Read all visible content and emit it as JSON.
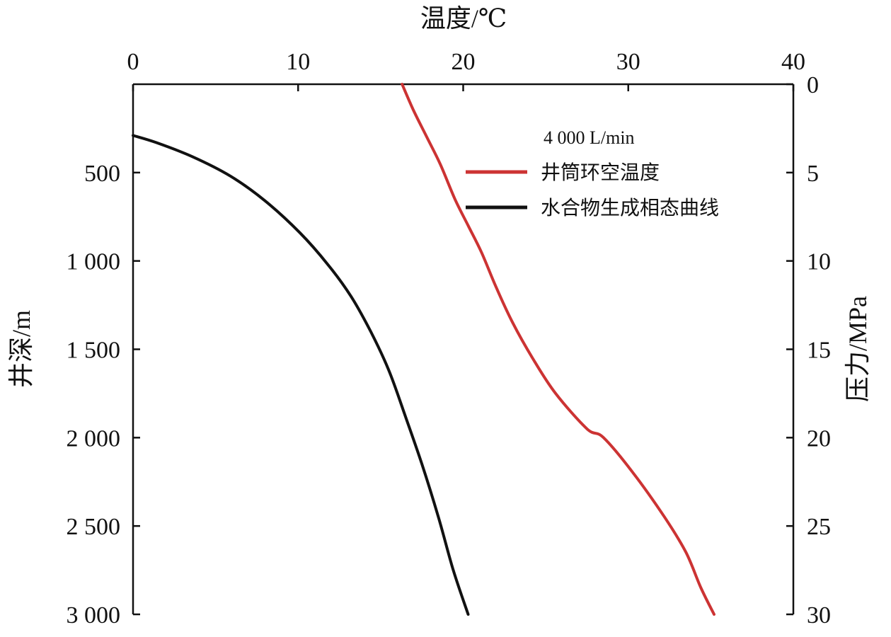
{
  "chart_data": {
    "type": "line",
    "title": "",
    "x_axis": {
      "label": "温度/℃",
      "position": "top",
      "range": [
        0,
        40
      ],
      "ticks": [
        0,
        10,
        20,
        30,
        40
      ],
      "tick_labels": [
        "0",
        "10",
        "20",
        "30",
        "40"
      ]
    },
    "y_axis_left": {
      "label": "井深/m",
      "range": [
        0,
        3000
      ],
      "inverted": true,
      "ticks": [
        500,
        1000,
        1500,
        2000,
        2500,
        3000
      ],
      "tick_labels": [
        "500",
        "1 000",
        "1 500",
        "2 000",
        "2 500",
        "3 000"
      ]
    },
    "y_axis_right": {
      "label": "压力/MPa",
      "range": [
        0,
        30
      ],
      "inverted": true,
      "ticks": [
        0,
        5,
        10,
        15,
        20,
        25,
        30
      ],
      "tick_labels": [
        "0",
        "5",
        "10",
        "15",
        "20",
        "25",
        "30"
      ]
    },
    "grid": false,
    "legend": {
      "title": "4 000 L/min",
      "placement": "top-right"
    },
    "series": [
      {
        "name": "井筒环空温度",
        "color": "#cc3333",
        "points": [
          [
            16.3,
            0
          ],
          [
            17.0,
            150
          ],
          [
            17.8,
            300
          ],
          [
            18.6,
            450
          ],
          [
            19.5,
            650
          ],
          [
            20.3,
            800
          ],
          [
            21.1,
            950
          ],
          [
            22.0,
            1150
          ],
          [
            23.0,
            1350
          ],
          [
            24.2,
            1550
          ],
          [
            25.6,
            1750
          ],
          [
            27.5,
            1950
          ],
          [
            28.5,
            2000
          ],
          [
            30.3,
            2200
          ],
          [
            32.2,
            2450
          ],
          [
            33.5,
            2650
          ],
          [
            34.4,
            2850
          ],
          [
            35.2,
            3000
          ]
        ]
      },
      {
        "name": "水合物生成相态曲线",
        "color": "#111111",
        "points": [
          [
            0.0,
            290
          ],
          [
            1.4,
            330
          ],
          [
            3.6,
            410
          ],
          [
            5.9,
            520
          ],
          [
            8.0,
            660
          ],
          [
            10.1,
            840
          ],
          [
            11.8,
            1020
          ],
          [
            13.2,
            1200
          ],
          [
            14.4,
            1400
          ],
          [
            15.5,
            1620
          ],
          [
            16.5,
            1880
          ],
          [
            17.5,
            2150
          ],
          [
            18.5,
            2450
          ],
          [
            19.4,
            2750
          ],
          [
            20.3,
            3000
          ]
        ]
      }
    ]
  }
}
